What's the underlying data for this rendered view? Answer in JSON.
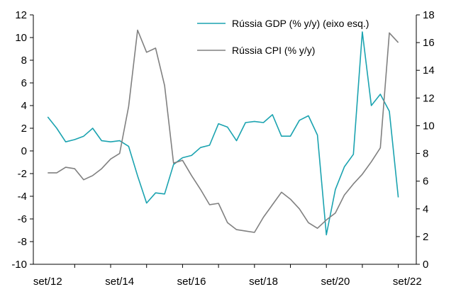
{
  "chart_data": {
    "type": "line",
    "title": "",
    "xlabel": "",
    "x_tick_labels": [
      "set/12",
      "set/14",
      "set/16",
      "set/18",
      "set/20",
      "set/22"
    ],
    "y_left": {
      "ylim": [
        -10,
        12
      ],
      "ticks": [
        -10,
        -8,
        -6,
        -4,
        -2,
        0,
        2,
        4,
        6,
        8,
        10,
        12
      ]
    },
    "y_right": {
      "ylim": [
        0,
        18
      ],
      "ticks": [
        0,
        2,
        4,
        6,
        8,
        10,
        12,
        14,
        16,
        18
      ]
    },
    "legend_position": "top-right",
    "series": [
      {
        "name": "Rússia GDP (% y/y) (eixo esq.)",
        "axis": "left",
        "color": "#1ba3b0",
        "x": [
          2012.75,
          2013.0,
          2013.25,
          2013.5,
          2013.75,
          2014.0,
          2014.25,
          2014.5,
          2014.75,
          2015.0,
          2015.25,
          2015.5,
          2015.75,
          2016.0,
          2016.25,
          2016.5,
          2016.75,
          2017.0,
          2017.25,
          2017.5,
          2017.75,
          2018.0,
          2018.25,
          2018.5,
          2018.75,
          2019.0,
          2019.25,
          2019.5,
          2019.75,
          2020.0,
          2020.25,
          2020.5,
          2020.75,
          2021.0,
          2021.25,
          2021.5,
          2021.75,
          2022.0,
          2022.25,
          2022.5,
          2022.75
        ],
        "values": [
          3.0,
          2.0,
          0.8,
          1.0,
          1.3,
          2.0,
          0.9,
          0.8,
          0.9,
          0.4,
          -2.2,
          -4.6,
          -3.7,
          -3.8,
          -1.2,
          -0.6,
          -0.4,
          0.3,
          0.5,
          2.4,
          2.1,
          0.9,
          2.5,
          2.6,
          2.5,
          3.2,
          1.3,
          1.3,
          2.7,
          3.1,
          1.4,
          -7.4,
          -3.4,
          -1.4,
          -0.3,
          10.5,
          4.0,
          5.0,
          3.5,
          -4.1,
          null
        ],
        "connect_gaps": true
      },
      {
        "name": "Rússia CPI (% y/y)",
        "axis": "right",
        "color": "#808080",
        "x": [
          2012.75,
          2013.0,
          2013.25,
          2013.5,
          2013.75,
          2014.0,
          2014.25,
          2014.5,
          2014.75,
          2015.0,
          2015.25,
          2015.5,
          2015.75,
          2016.0,
          2016.25,
          2016.5,
          2016.75,
          2017.0,
          2017.25,
          2017.5,
          2017.75,
          2018.0,
          2018.25,
          2018.5,
          2018.75,
          2019.0,
          2019.25,
          2019.5,
          2019.75,
          2020.0,
          2020.25,
          2020.5,
          2020.75,
          2021.0,
          2021.25,
          2021.5,
          2021.75,
          2022.0,
          2022.25,
          2022.5,
          2022.75
        ],
        "values": [
          6.6,
          6.6,
          7.0,
          6.9,
          6.1,
          6.4,
          6.9,
          7.6,
          8.0,
          11.4,
          16.9,
          15.3,
          15.6,
          12.9,
          7.3,
          7.5,
          6.4,
          5.4,
          4.3,
          4.4,
          3.0,
          2.5,
          2.4,
          2.3,
          3.4,
          4.3,
          5.2,
          4.7,
          4.0,
          3.0,
          2.6,
          3.2,
          3.7,
          5.0,
          5.8,
          6.5,
          7.4,
          8.4,
          16.7,
          16.0,
          null
        ],
        "connect_gaps": true
      }
    ]
  }
}
